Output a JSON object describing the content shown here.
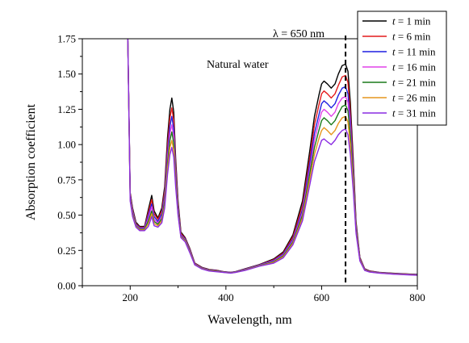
{
  "chart_data": {
    "type": "line",
    "title": "",
    "xlabel": "Wavelength, nm",
    "ylabel": "Absorption coefficient",
    "xlim": [
      100,
      800
    ],
    "ylim": [
      0.0,
      1.75
    ],
    "xticks": [
      "200",
      "400",
      "600",
      "800"
    ],
    "yticks": [
      "0.00",
      "0.25",
      "0.50",
      "0.75",
      "1.00",
      "1.25",
      "1.50",
      "1.75"
    ],
    "grid": false,
    "legend_placement": "top-right",
    "legend_var": "t",
    "legend_text": [
      " = 1 min",
      " = 6 min",
      " = 11 min",
      " = 16 min",
      " = 21 min",
      " = 26 min",
      " = 31 min"
    ],
    "annotations": [
      {
        "text": "Natural water"
      },
      {
        "text": "λ = 650 nm",
        "marker_x": 650
      }
    ],
    "series": [
      {
        "name": "t = 1 min",
        "color": "#000000",
        "x": [
          195,
          200,
          205,
          212,
          220,
          230,
          238,
          245,
          250,
          258,
          266,
          272,
          278,
          283,
          287,
          291,
          295,
          300,
          306,
          315,
          325,
          335,
          350,
          365,
          380,
          395,
          410,
          420,
          440,
          470,
          500,
          520,
          540,
          560,
          575,
          585,
          595,
          600,
          605,
          612,
          620,
          628,
          635,
          643,
          650,
          655,
          660,
          666,
          672,
          680,
          690,
          700,
          720,
          750,
          780,
          800
        ],
        "y": [
          1.75,
          0.66,
          0.55,
          0.45,
          0.42,
          0.42,
          0.54,
          0.64,
          0.53,
          0.48,
          0.55,
          0.7,
          1.05,
          1.25,
          1.33,
          1.23,
          0.9,
          0.6,
          0.38,
          0.34,
          0.26,
          0.16,
          0.13,
          0.115,
          0.11,
          0.1,
          0.095,
          0.1,
          0.12,
          0.15,
          0.19,
          0.24,
          0.36,
          0.6,
          0.95,
          1.2,
          1.36,
          1.43,
          1.45,
          1.43,
          1.4,
          1.43,
          1.5,
          1.56,
          1.57,
          1.52,
          1.3,
          0.9,
          0.45,
          0.2,
          0.12,
          0.105,
          0.095,
          0.088,
          0.083,
          0.08
        ]
      },
      {
        "name": "t = 6 min",
        "color": "#e41a1c",
        "x": [
          195,
          200,
          205,
          212,
          220,
          230,
          238,
          245,
          250,
          258,
          266,
          272,
          278,
          283,
          287,
          291,
          295,
          300,
          306,
          315,
          325,
          335,
          350,
          365,
          380,
          395,
          410,
          420,
          440,
          470,
          500,
          520,
          540,
          560,
          575,
          585,
          595,
          600,
          605,
          612,
          620,
          628,
          635,
          643,
          650,
          655,
          660,
          666,
          672,
          680,
          690,
          700,
          720,
          750,
          780,
          800
        ],
        "y": [
          1.75,
          0.65,
          0.54,
          0.44,
          0.415,
          0.415,
          0.52,
          0.61,
          0.51,
          0.47,
          0.53,
          0.67,
          1.0,
          1.19,
          1.26,
          1.17,
          0.86,
          0.58,
          0.37,
          0.335,
          0.255,
          0.158,
          0.128,
          0.113,
          0.108,
          0.099,
          0.094,
          0.099,
          0.118,
          0.148,
          0.185,
          0.232,
          0.345,
          0.57,
          0.9,
          1.14,
          1.29,
          1.36,
          1.38,
          1.36,
          1.33,
          1.36,
          1.42,
          1.48,
          1.49,
          1.44,
          1.23,
          0.86,
          0.43,
          0.195,
          0.118,
          0.103,
          0.094,
          0.087,
          0.082,
          0.079
        ]
      },
      {
        "name": "t = 11 min",
        "color": "#1f1fe0",
        "x": [
          195,
          200,
          205,
          212,
          220,
          230,
          238,
          245,
          250,
          258,
          266,
          272,
          278,
          283,
          287,
          291,
          295,
          300,
          306,
          315,
          325,
          335,
          350,
          365,
          380,
          395,
          410,
          420,
          440,
          470,
          500,
          520,
          540,
          560,
          575,
          585,
          595,
          600,
          605,
          612,
          620,
          628,
          635,
          643,
          650,
          655,
          660,
          666,
          672,
          680,
          690,
          700,
          720,
          750,
          780,
          800
        ],
        "y": [
          1.75,
          0.64,
          0.53,
          0.435,
          0.41,
          0.41,
          0.5,
          0.58,
          0.49,
          0.455,
          0.51,
          0.64,
          0.95,
          1.13,
          1.2,
          1.11,
          0.82,
          0.56,
          0.36,
          0.33,
          0.25,
          0.155,
          0.126,
          0.111,
          0.106,
          0.098,
          0.093,
          0.098,
          0.116,
          0.146,
          0.18,
          0.225,
          0.33,
          0.54,
          0.86,
          1.08,
          1.22,
          1.29,
          1.31,
          1.29,
          1.26,
          1.29,
          1.35,
          1.4,
          1.41,
          1.36,
          1.17,
          0.82,
          0.42,
          0.19,
          0.116,
          0.101,
          0.093,
          0.086,
          0.081,
          0.078
        ]
      },
      {
        "name": "t = 16 min",
        "color": "#e040e8",
        "x": [
          195,
          200,
          205,
          212,
          220,
          230,
          238,
          245,
          250,
          258,
          266,
          272,
          278,
          283,
          287,
          291,
          295,
          300,
          306,
          315,
          325,
          335,
          350,
          365,
          380,
          395,
          410,
          420,
          440,
          470,
          500,
          520,
          540,
          560,
          575,
          585,
          595,
          600,
          605,
          612,
          620,
          628,
          635,
          643,
          650,
          655,
          660,
          666,
          672,
          680,
          690,
          700,
          720,
          750,
          780,
          800
        ],
        "y": [
          1.75,
          0.63,
          0.52,
          0.43,
          0.405,
          0.405,
          0.48,
          0.56,
          0.47,
          0.445,
          0.49,
          0.62,
          0.91,
          1.08,
          1.14,
          1.06,
          0.79,
          0.54,
          0.355,
          0.325,
          0.245,
          0.153,
          0.124,
          0.109,
          0.104,
          0.097,
          0.092,
          0.097,
          0.114,
          0.144,
          0.175,
          0.218,
          0.32,
          0.52,
          0.82,
          1.03,
          1.17,
          1.23,
          1.25,
          1.23,
          1.2,
          1.23,
          1.29,
          1.33,
          1.34,
          1.3,
          1.12,
          0.79,
          0.41,
          0.187,
          0.114,
          0.1,
          0.092,
          0.085,
          0.08,
          0.077
        ]
      },
      {
        "name": "t = 21 min",
        "color": "#1a7a1a",
        "x": [
          195,
          200,
          205,
          212,
          220,
          230,
          238,
          245,
          250,
          258,
          266,
          272,
          278,
          283,
          287,
          291,
          295,
          300,
          306,
          315,
          325,
          335,
          350,
          365,
          380,
          395,
          410,
          420,
          440,
          470,
          500,
          520,
          540,
          560,
          575,
          585,
          595,
          600,
          605,
          612,
          620,
          628,
          635,
          643,
          650,
          655,
          660,
          666,
          672,
          680,
          690,
          700,
          720,
          750,
          780,
          800
        ],
        "y": [
          1.75,
          0.62,
          0.51,
          0.425,
          0.4,
          0.4,
          0.46,
          0.53,
          0.455,
          0.435,
          0.475,
          0.6,
          0.87,
          1.03,
          1.09,
          1.01,
          0.76,
          0.53,
          0.35,
          0.32,
          0.24,
          0.151,
          0.122,
          0.108,
          0.103,
          0.096,
          0.091,
          0.096,
          0.112,
          0.142,
          0.17,
          0.212,
          0.31,
          0.5,
          0.79,
          0.98,
          1.11,
          1.17,
          1.19,
          1.17,
          1.14,
          1.17,
          1.22,
          1.27,
          1.28,
          1.24,
          1.07,
          0.76,
          0.4,
          0.183,
          0.112,
          0.099,
          0.091,
          0.084,
          0.079,
          0.076
        ]
      },
      {
        "name": "t = 26 min",
        "color": "#e6961e",
        "x": [
          195,
          200,
          205,
          212,
          220,
          230,
          238,
          245,
          250,
          258,
          266,
          272,
          278,
          283,
          287,
          291,
          295,
          300,
          306,
          315,
          325,
          335,
          350,
          365,
          380,
          395,
          410,
          420,
          440,
          470,
          500,
          520,
          540,
          560,
          575,
          585,
          595,
          600,
          605,
          612,
          620,
          628,
          635,
          643,
          650,
          655,
          660,
          666,
          672,
          680,
          690,
          700,
          720,
          750,
          780,
          800
        ],
        "y": [
          1.75,
          0.61,
          0.5,
          0.42,
          0.395,
          0.395,
          0.44,
          0.51,
          0.44,
          0.425,
          0.46,
          0.57,
          0.83,
          0.98,
          1.03,
          0.96,
          0.73,
          0.51,
          0.345,
          0.315,
          0.235,
          0.149,
          0.12,
          0.106,
          0.101,
          0.095,
          0.09,
          0.095,
          0.11,
          0.14,
          0.165,
          0.205,
          0.3,
          0.48,
          0.75,
          0.93,
          1.05,
          1.1,
          1.12,
          1.1,
          1.07,
          1.1,
          1.15,
          1.19,
          1.2,
          1.16,
          1.0,
          0.72,
          0.385,
          0.18,
          0.11,
          0.098,
          0.09,
          0.083,
          0.078,
          0.075
        ]
      },
      {
        "name": "t = 31 min",
        "color": "#8a2be2",
        "x": [
          195,
          200,
          205,
          212,
          220,
          230,
          238,
          245,
          250,
          258,
          266,
          272,
          278,
          283,
          287,
          291,
          295,
          300,
          306,
          315,
          325,
          335,
          350,
          365,
          380,
          395,
          410,
          420,
          440,
          470,
          500,
          520,
          540,
          560,
          575,
          585,
          595,
          600,
          605,
          612,
          620,
          628,
          635,
          643,
          650,
          655,
          660,
          666,
          672,
          680,
          690,
          700,
          720,
          750,
          780,
          800
        ],
        "y": [
          1.75,
          0.6,
          0.49,
          0.415,
          0.39,
          0.39,
          0.42,
          0.49,
          0.425,
          0.415,
          0.445,
          0.55,
          0.79,
          0.93,
          0.98,
          0.91,
          0.7,
          0.5,
          0.34,
          0.31,
          0.23,
          0.147,
          0.118,
          0.104,
          0.099,
          0.094,
          0.089,
          0.094,
          0.108,
          0.138,
          0.16,
          0.198,
          0.29,
          0.46,
          0.71,
          0.88,
          0.98,
          1.03,
          1.04,
          1.02,
          1.0,
          1.03,
          1.07,
          1.1,
          1.11,
          1.07,
          0.93,
          0.68,
          0.37,
          0.175,
          0.108,
          0.097,
          0.089,
          0.082,
          0.077,
          0.074
        ]
      }
    ]
  }
}
